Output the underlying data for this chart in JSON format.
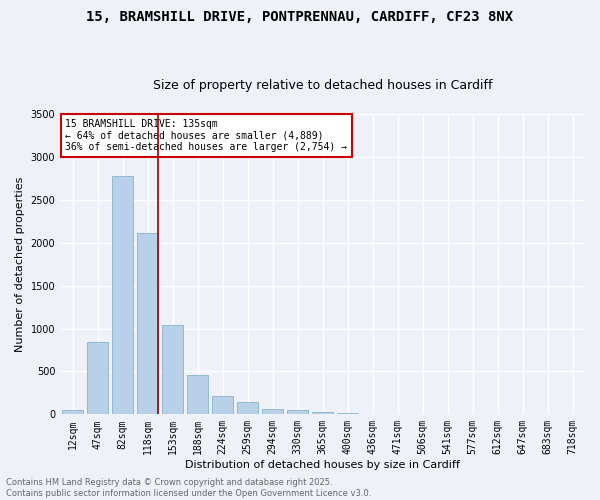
{
  "title_line1": "15, BRAMSHILL DRIVE, PONTPRENNAU, CARDIFF, CF23 8NX",
  "title_line2": "Size of property relative to detached houses in Cardiff",
  "xlabel": "Distribution of detached houses by size in Cardiff",
  "ylabel": "Number of detached properties",
  "bar_labels": [
    "12sqm",
    "47sqm",
    "82sqm",
    "118sqm",
    "153sqm",
    "188sqm",
    "224sqm",
    "259sqm",
    "294sqm",
    "330sqm",
    "365sqm",
    "400sqm",
    "436sqm",
    "471sqm",
    "506sqm",
    "541sqm",
    "577sqm",
    "612sqm",
    "647sqm",
    "683sqm",
    "718sqm"
  ],
  "bar_values": [
    55,
    840,
    2780,
    2110,
    1040,
    455,
    215,
    145,
    65,
    45,
    30,
    12,
    8,
    5,
    3,
    2,
    1,
    1,
    0,
    0,
    0
  ],
  "bar_color": "#b8d0e8",
  "bar_edge_color": "#7aaac8",
  "vline_color": "#990000",
  "vline_idx": 3,
  "ylim": [
    0,
    3500
  ],
  "yticks": [
    0,
    500,
    1000,
    1500,
    2000,
    2500,
    3000,
    3500
  ],
  "annotation_text": "15 BRAMSHILL DRIVE: 135sqm\n← 64% of detached houses are smaller (4,889)\n36% of semi-detached houses are larger (2,754) →",
  "annotation_box_color": "#ffffff",
  "annotation_box_edge": "#cc0000",
  "footer_text": "Contains HM Land Registry data © Crown copyright and database right 2025.\nContains public sector information licensed under the Open Government Licence v3.0.",
  "background_color": "#eef2f8",
  "grid_color": "#ffffff",
  "title_fontsize": 10,
  "subtitle_fontsize": 9,
  "tick_fontsize": 7,
  "ylabel_fontsize": 8,
  "xlabel_fontsize": 8,
  "annotation_fontsize": 7,
  "footer_fontsize": 6
}
